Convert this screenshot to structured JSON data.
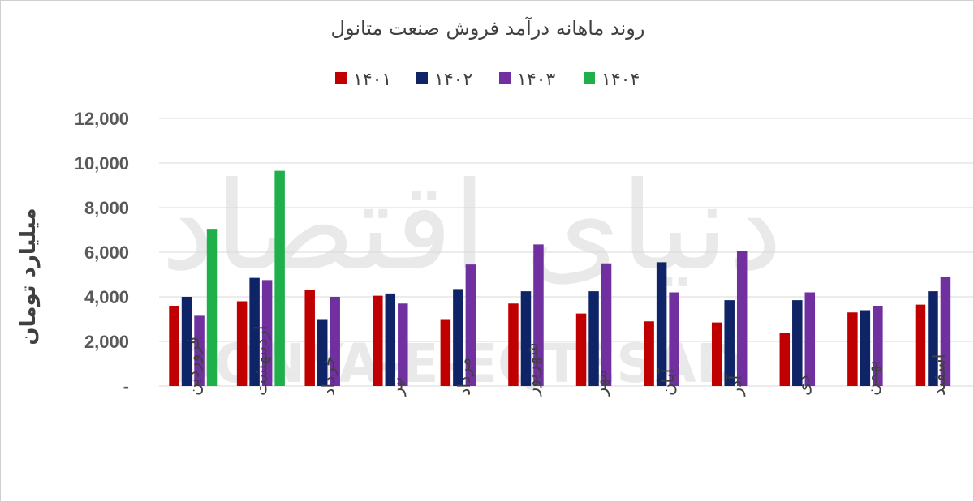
{
  "chart_data": {
    "type": "bar",
    "title": "روند ماهانه درآمد فروش صنعت متانول",
    "ylabel": "میلیارد تومان",
    "xlabel": "",
    "ylim": [
      0,
      12000
    ],
    "yticks": [
      0,
      2000,
      4000,
      6000,
      8000,
      10000,
      12000
    ],
    "ytick_labels": [
      "-",
      "2,000",
      "4,000",
      "6,000",
      "8,000",
      "10,000",
      "12,000"
    ],
    "grid": true,
    "legend_position": "top",
    "categories": [
      "فروردین",
      "اردیبهشت",
      "خرداد",
      "تیر",
      "مرداد",
      "شهریور",
      "مهر",
      "آبان",
      "آذر",
      "دی",
      "بهمن",
      "اسفند"
    ],
    "series": [
      {
        "name": "۱۴۰۱",
        "color": "#c00000",
        "values": [
          3600,
          3800,
          4300,
          4050,
          3000,
          3700,
          3250,
          2900,
          2850,
          2400,
          3300,
          3650
        ]
      },
      {
        "name": "۱۴۰۲",
        "color": "#0f2466",
        "values": [
          4000,
          4850,
          3000,
          4150,
          4350,
          4250,
          4250,
          5550,
          3850,
          3850,
          3400,
          4250
        ]
      },
      {
        "name": "۱۴۰۳",
        "color": "#7030a0",
        "values": [
          3150,
          4750,
          4000,
          3700,
          5450,
          6350,
          5500,
          4200,
          6050,
          4200,
          3600,
          4900
        ]
      },
      {
        "name": "۱۴۰۴",
        "color": "#1faf4b",
        "values": [
          7050,
          9650,
          null,
          null,
          null,
          null,
          null,
          null,
          null,
          null,
          null,
          null
        ]
      }
    ]
  }
}
